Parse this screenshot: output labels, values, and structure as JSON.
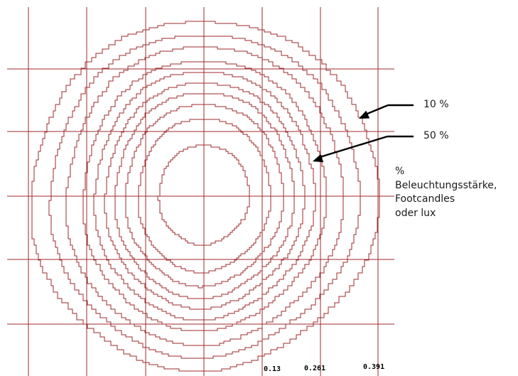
{
  "diagram": {
    "line_color": "#9e2a2b",
    "contour_levels": [
      "10 %",
      "",
      "",
      "",
      "",
      "50 %",
      "",
      "",
      "",
      ""
    ],
    "callouts": [
      {
        "text": "10 %",
        "level": "outer"
      },
      {
        "text": "50 %",
        "level": "middle"
      }
    ],
    "legend_lines": [
      "%",
      "Beleuchtungsstärke,",
      "Footcandles",
      "oder lux"
    ],
    "x_ticks": [
      "0.13",
      "0.261",
      "0.391"
    ]
  }
}
